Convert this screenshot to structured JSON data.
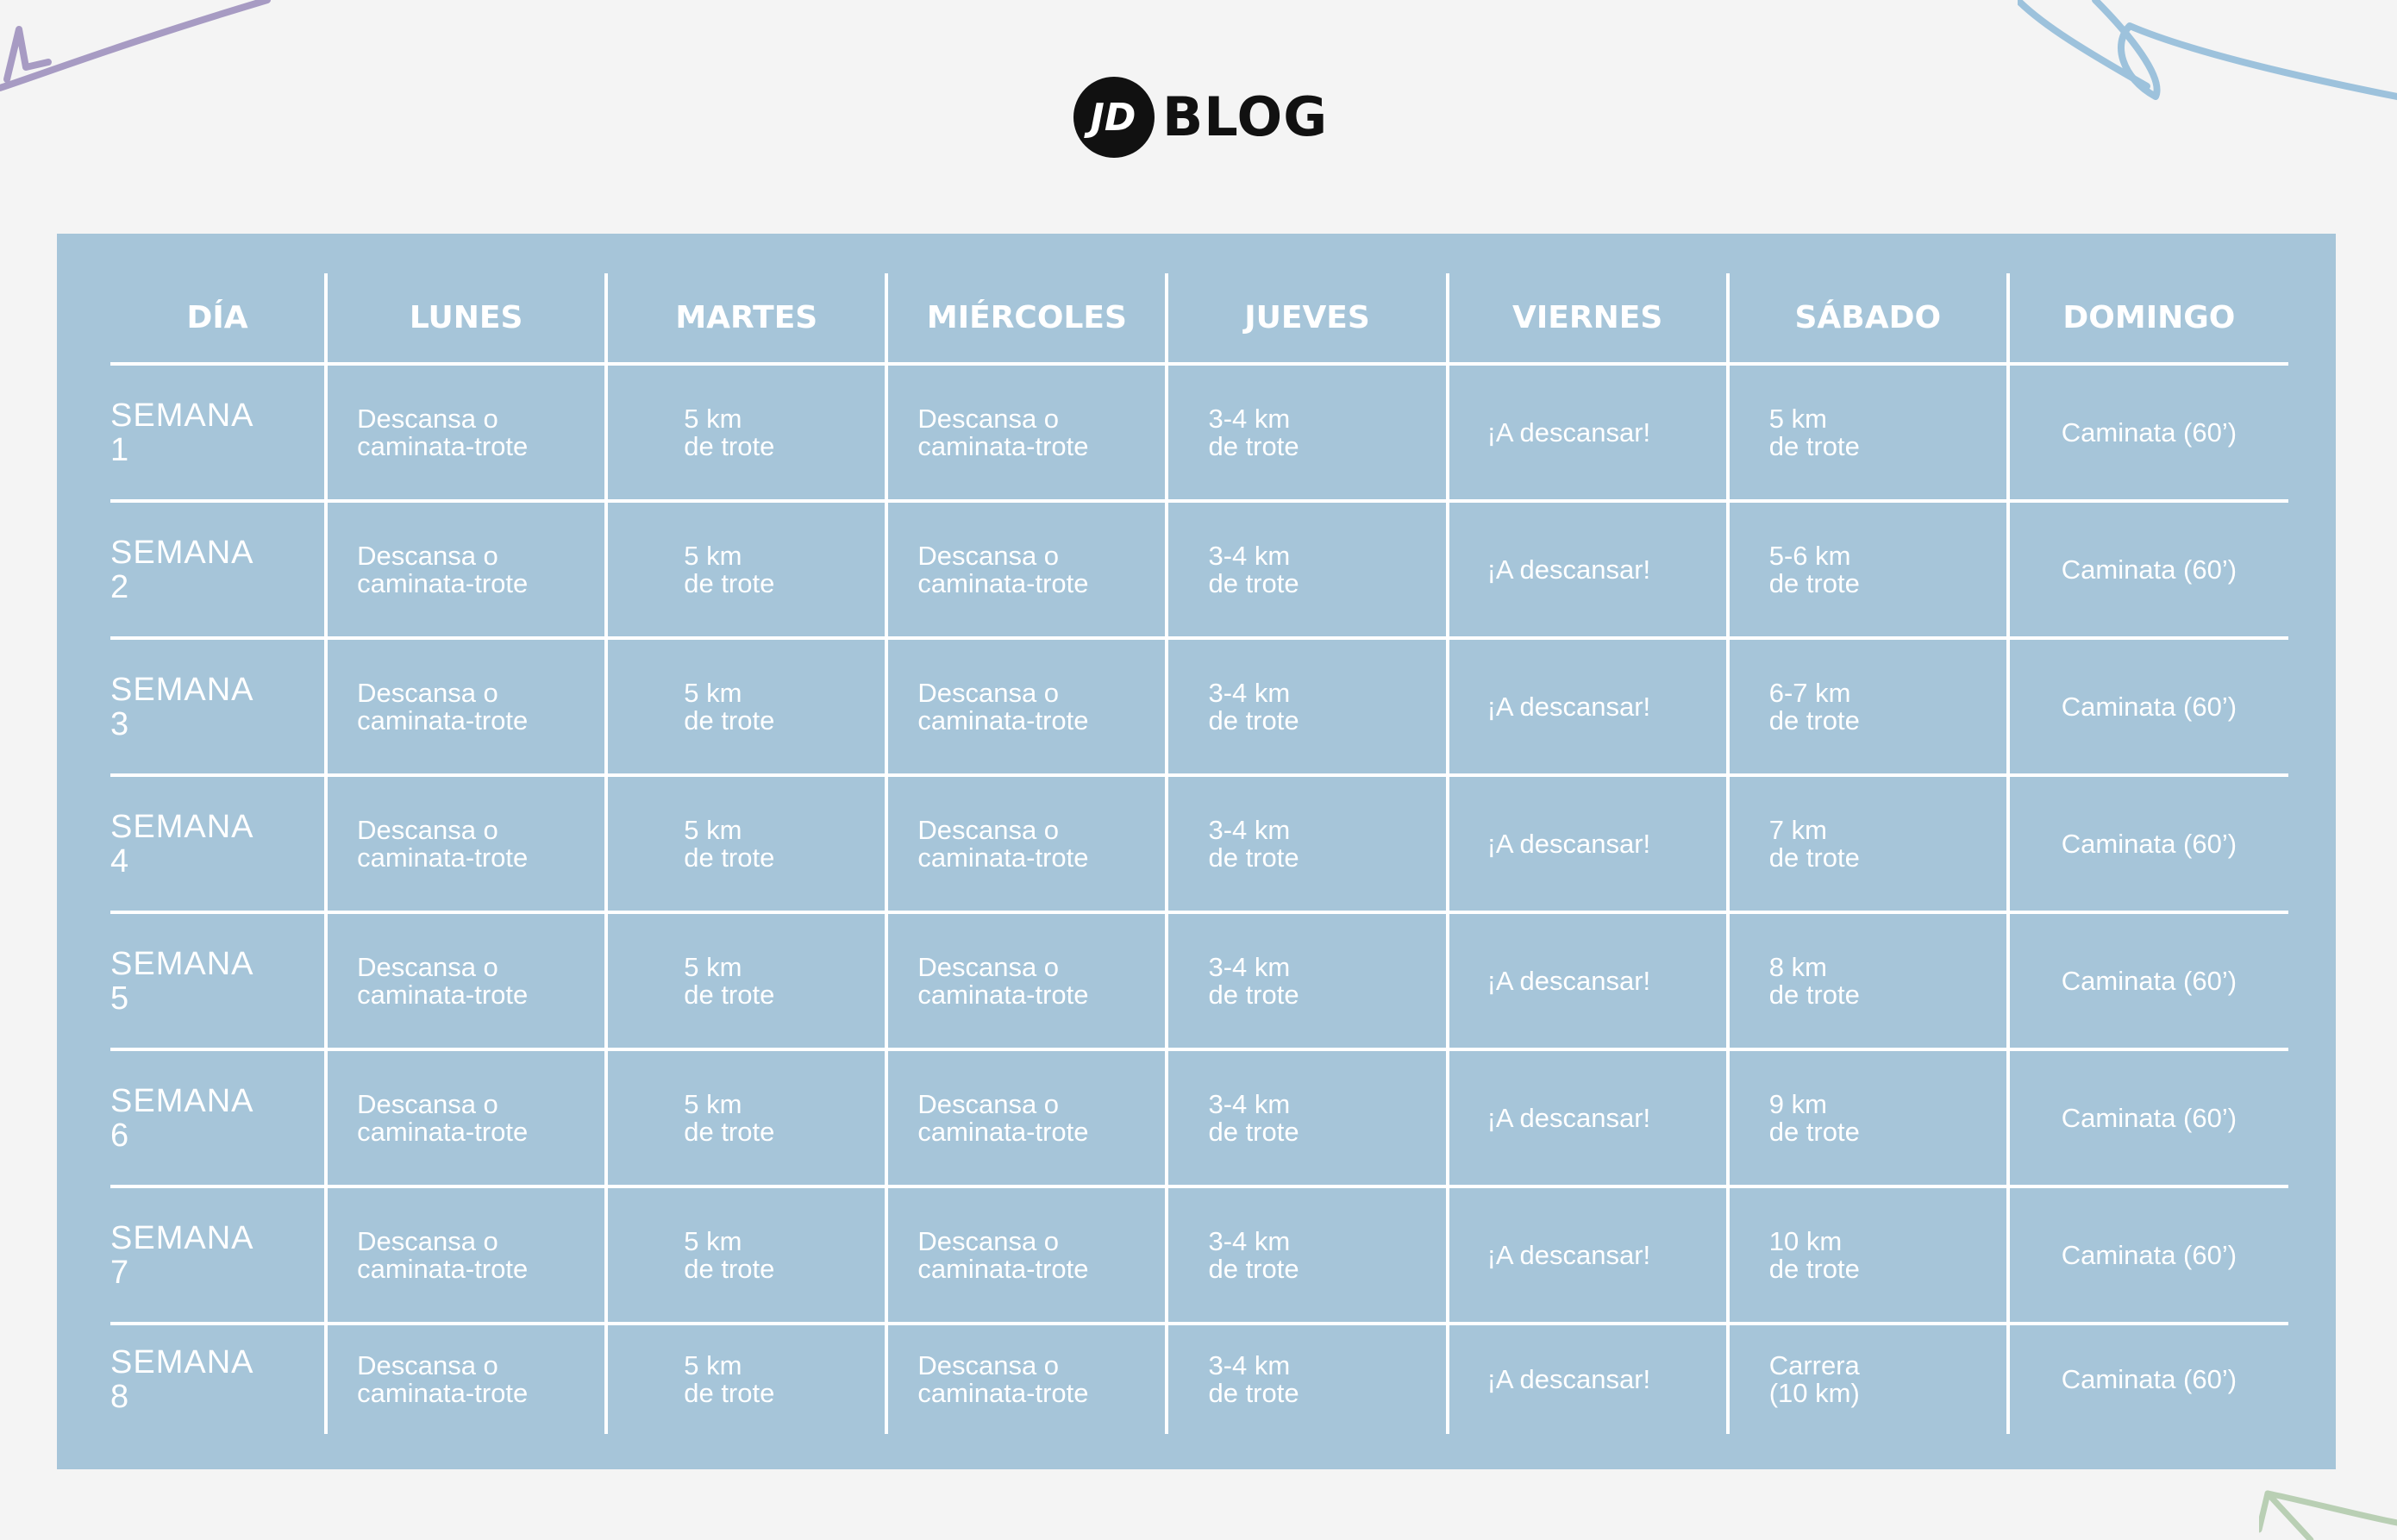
{
  "header": {
    "logo_mark": "JD",
    "logo_text": "BLOG"
  },
  "table": {
    "columns": [
      "DÍA",
      "LUNES",
      "MARTES",
      "MIÉRCOLES",
      "JUEVES",
      "VIERNES",
      "SÁBADO",
      "DOMINGO"
    ],
    "rows": [
      {
        "week": "SEMANA\n1",
        "mon": "Descansa o\ncaminata-trote",
        "tue": "5 km\nde trote",
        "wed": "Descansa o\ncaminata-trote",
        "thu": "3-4 km\nde trote",
        "fri": "¡A descansar!",
        "sat": "5 km\nde trote",
        "sun": "Caminata (60’)"
      },
      {
        "week": "SEMANA\n2",
        "mon": "Descansa o\ncaminata-trote",
        "tue": "5 km\nde trote",
        "wed": "Descansa o\ncaminata-trote",
        "thu": "3-4 km\nde trote",
        "fri": "¡A descansar!",
        "sat": "5-6 km\nde trote",
        "sun": "Caminata (60’)"
      },
      {
        "week": "SEMANA\n3",
        "mon": "Descansa o\ncaminata-trote",
        "tue": "5 km\nde trote",
        "wed": "Descansa o\ncaminata-trote",
        "thu": "3-4 km\nde trote",
        "fri": "¡A descansar!",
        "sat": "6-7 km\nde trote",
        "sun": "Caminata (60’)"
      },
      {
        "week": "SEMANA\n4",
        "mon": "Descansa o\ncaminata-trote",
        "tue": "5 km\nde trote",
        "wed": "Descansa o\ncaminata-trote",
        "thu": "3-4 km\nde trote",
        "fri": "¡A descansar!",
        "sat": "7 km\nde trote",
        "sun": "Caminata (60’)"
      },
      {
        "week": "SEMANA\n5",
        "mon": "Descansa o\ncaminata-trote",
        "tue": "5 km\nde trote",
        "wed": "Descansa o\ncaminata-trote",
        "thu": "3-4 km\nde trote",
        "fri": "¡A descansar!",
        "sat": "8 km\nde trote",
        "sun": "Caminata (60’)"
      },
      {
        "week": "SEMANA\n6",
        "mon": "Descansa o\ncaminata-trote",
        "tue": "5 km\nde trote",
        "wed": "Descansa o\ncaminata-trote",
        "thu": "3-4 km\nde trote",
        "fri": "¡A descansar!",
        "sat": "9 km\nde trote",
        "sun": "Caminata (60’)"
      },
      {
        "week": "SEMANA\n7",
        "mon": "Descansa o\ncaminata-trote",
        "tue": "5 km\nde trote",
        "wed": "Descansa o\ncaminata-trote",
        "thu": "3-4 km\nde trote",
        "fri": "¡A descansar!",
        "sat": "10 km\nde trote",
        "sun": "Caminata (60’)"
      },
      {
        "week": "SEMANA\n8",
        "mon": "Descansa o\ncaminata-trote",
        "tue": "5 km\nde trote",
        "wed": "Descansa o\ncaminata-trote",
        "thu": "3-4 km\nde trote",
        "fri": "¡A descansar!",
        "sat": "Carrera\n(10 km)",
        "sun": "Caminata (60’)"
      }
    ]
  },
  "colors": {
    "page_background": "#f4f4f4",
    "panel_background": "#a6c5d9",
    "text": "#ffffff",
    "logo": "#111111",
    "deco_purple": "#a79bc3",
    "deco_blue": "#9dc2dc",
    "deco_green": "#b9cfb4"
  }
}
